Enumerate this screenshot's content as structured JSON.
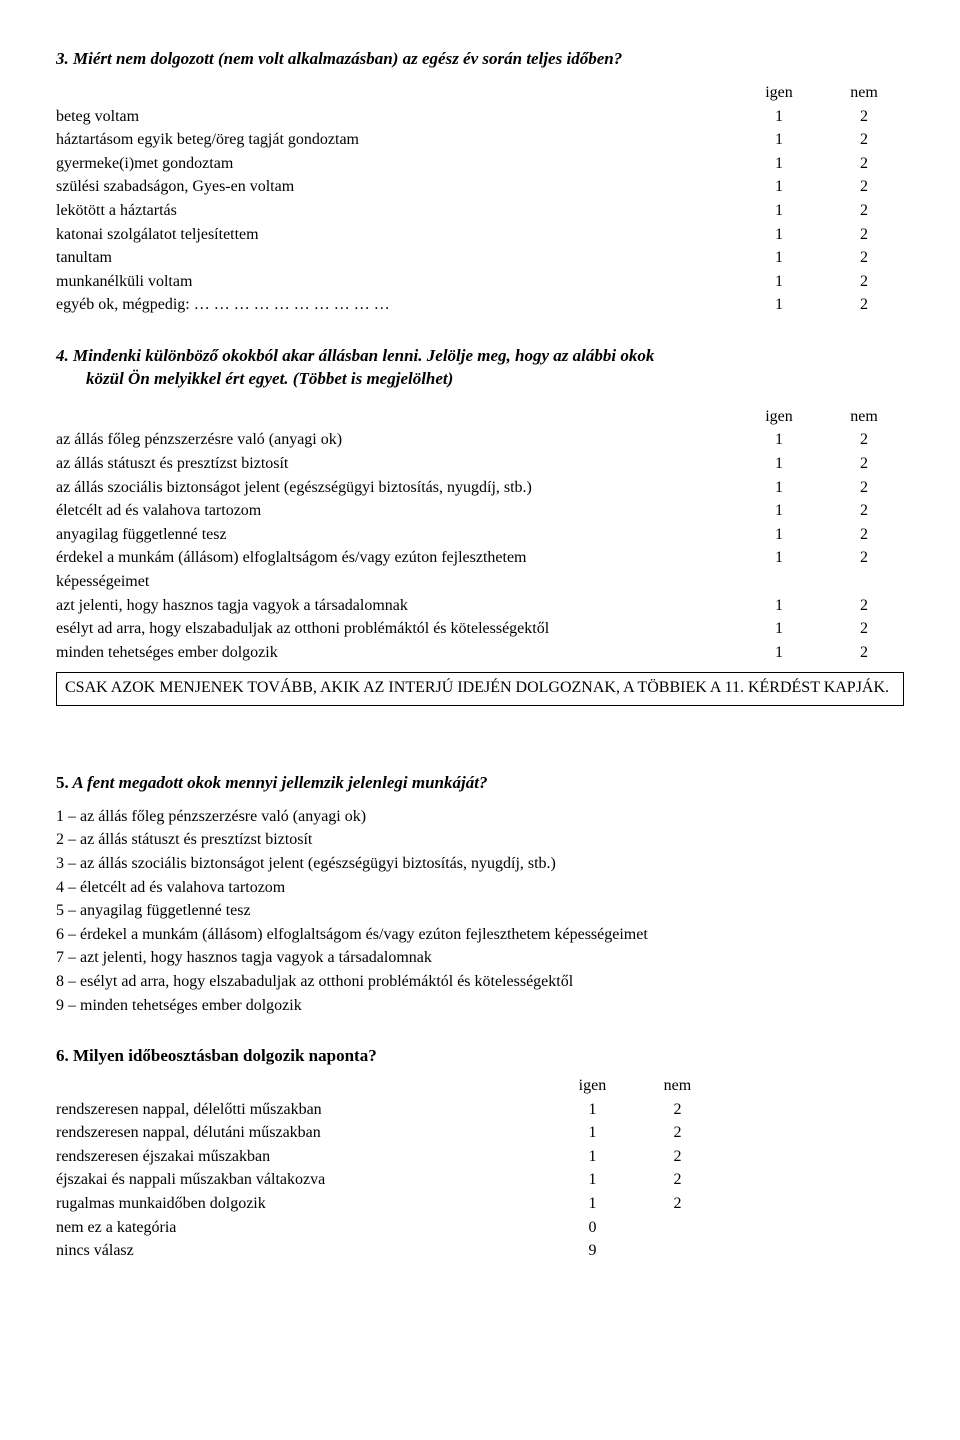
{
  "col_headers": {
    "igen": "igen",
    "nem": "nem"
  },
  "q3": {
    "title": "3. Miért nem dolgozott (nem volt alkalmazásban) az egész év során teljes időben?",
    "rows": [
      {
        "label": "beteg voltam",
        "igen": "1",
        "nem": "2"
      },
      {
        "label": "háztartásom egyik beteg/öreg tagját gondoztam",
        "igen": "1",
        "nem": "2"
      },
      {
        "label": "gyermeke(i)met gondoztam",
        "igen": "1",
        "nem": "2"
      },
      {
        "label": "szülési szabadságon, Gyes-en voltam",
        "igen": "1",
        "nem": "2"
      },
      {
        "label": "lekötött a háztartás",
        "igen": "1",
        "nem": "2"
      },
      {
        "label": "katonai szolgálatot teljesítettem",
        "igen": "1",
        "nem": "2"
      },
      {
        "label": "tanultam",
        "igen": "1",
        "nem": "2"
      },
      {
        "label": "munkanélküli voltam",
        "igen": "1",
        "nem": "2"
      },
      {
        "label": "egyéb ok, mégpedig: … … … … … … … … … …",
        "igen": "1",
        "nem": "2"
      }
    ]
  },
  "q4": {
    "title_a": "4. Mindenki különböző okokból akar állásban lenni. Jelölje meg, hogy az alábbi okok",
    "title_b": "közül Ön melyikkel ért egyet. (Többet is megjelölhet)",
    "rows": [
      {
        "label": "az állás főleg pénzszerzésre való (anyagi ok)",
        "igen": "1",
        "nem": "2"
      },
      {
        "label": "az állás státuszt és presztízst biztosít",
        "igen": "1",
        "nem": "2"
      },
      {
        "label": "az állás szociális biztonságot jelent (egészségügyi biztosítás, nyugdíj, stb.)",
        "igen": "1",
        "nem": "2"
      },
      {
        "label": "életcélt ad és valahova tartozom",
        "igen": "1",
        "nem": "2"
      },
      {
        "label": "anyagilag függetlenné tesz",
        "igen": "1",
        "nem": "2"
      },
      {
        "label": "érdekel a munkám (állásom) elfoglaltságom és/vagy ezúton fejleszthetem",
        "igen": "1",
        "nem": "2",
        "cont": "képességeimet"
      },
      {
        "label": "azt jelenti, hogy hasznos tagja vagyok a társadalomnak",
        "igen": "1",
        "nem": "2"
      },
      {
        "label": "esélyt ad arra, hogy elszabaduljak az otthoni problémáktól és kötelességektől",
        "igen": "1",
        "nem": "2"
      },
      {
        "label": "minden tehetséges ember dolgozik",
        "igen": "1",
        "nem": "2"
      }
    ],
    "note": "CSAK AZOK MENJENEK TOVÁBB, AKIK AZ INTERJÚ IDEJÉN DOLGOZNAK, A TÖBBIEK A 11. KÉRDÉST KAPJÁK."
  },
  "q5": {
    "title": "5. A fent megadott okok mennyi jellemzik jelenlegi munkáját?",
    "items": [
      "1 – az állás főleg pénzszerzésre való (anyagi ok)",
      "2 – az állás státuszt és presztízst biztosít",
      "3 – az állás szociális biztonságot jelent (egészségügyi biztosítás, nyugdíj, stb.)",
      "4 – életcélt ad és valahova tartozom",
      "5 – anyagilag függetlenné tesz",
      "6 – érdekel a munkám (állásom) elfoglaltságom és/vagy ezúton fejleszthetem képességeimet",
      "7 – azt jelenti, hogy hasznos tagja vagyok a társadalomnak",
      "8 – esélyt ad arra, hogy elszabaduljak az otthoni problémáktól és kötelességektől",
      "9 – minden tehetséges ember dolgozik"
    ]
  },
  "q6": {
    "title": "6. Milyen időbeosztásban dolgozik naponta?",
    "rows": [
      {
        "label": "rendszeresen nappal, délelőtti műszakban",
        "igen": "1",
        "nem": "2"
      },
      {
        "label": "rendszeresen nappal, délutáni műszakban",
        "igen": "1",
        "nem": "2"
      },
      {
        "label": "rendszeresen éjszakai műszakban",
        "igen": "1",
        "nem": "2"
      },
      {
        "label": "éjszakai és nappali műszakban váltakozva",
        "igen": "1",
        "nem": "2"
      },
      {
        "label": "rugalmas munkaidőben dolgozik",
        "igen": "1",
        "nem": "2"
      },
      {
        "label": "nem ez a kategória",
        "igen": "0",
        "nem": ""
      },
      {
        "label": "nincs válasz",
        "igen": "9",
        "nem": ""
      }
    ]
  }
}
